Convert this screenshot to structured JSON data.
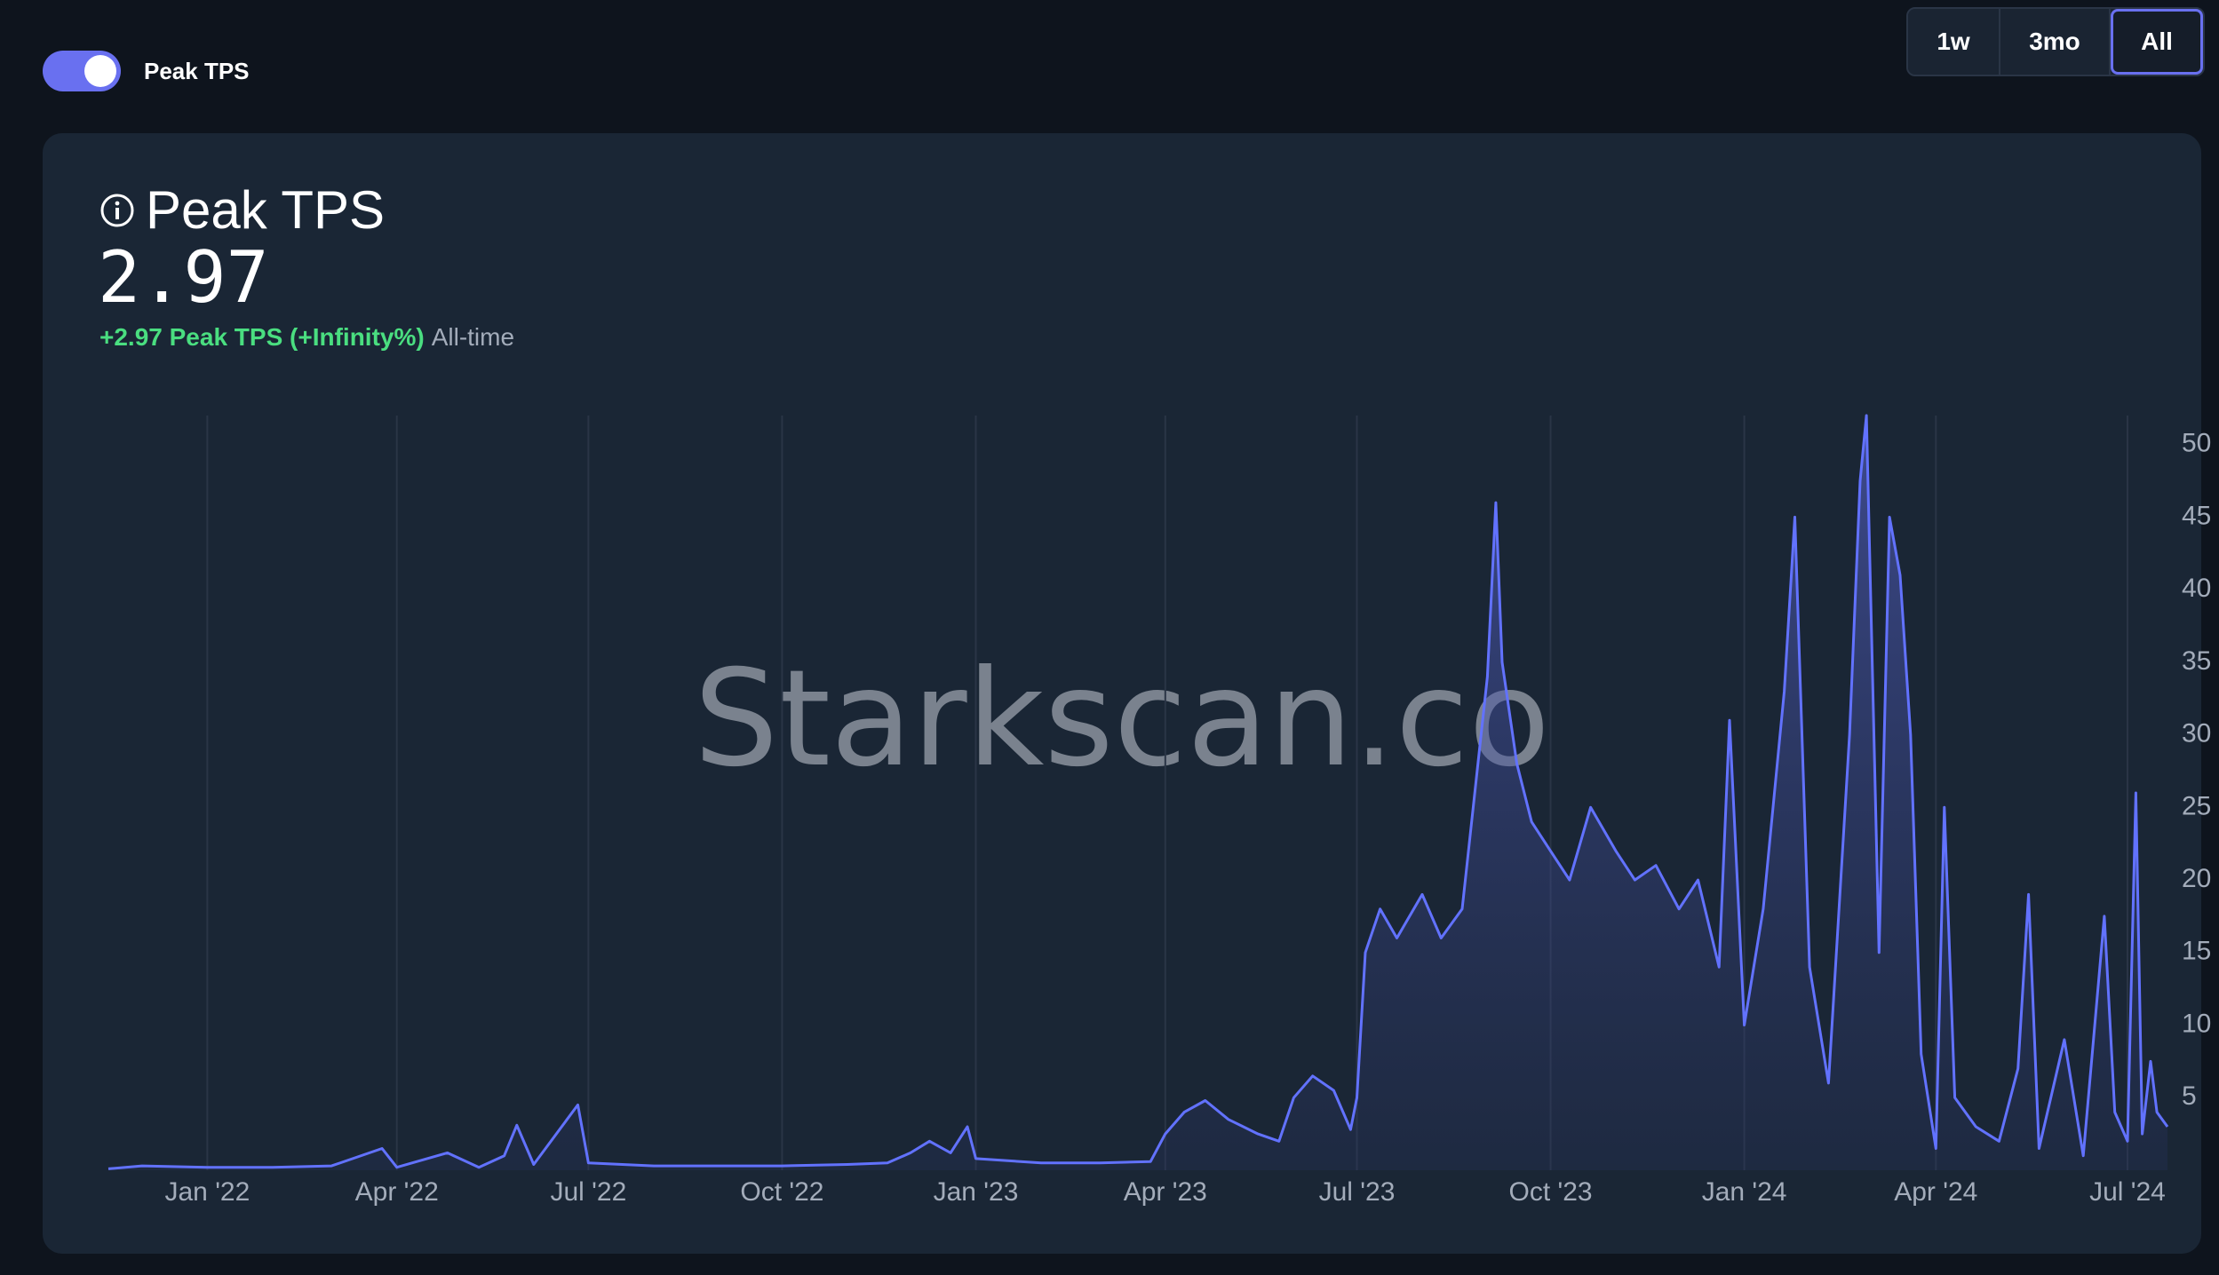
{
  "toggle": {
    "label": "Peak TPS",
    "on": true
  },
  "range_buttons": [
    "1w",
    "3mo",
    "All"
  ],
  "selected_range": "All",
  "card": {
    "title": "Peak TPS",
    "value": "2.97",
    "delta": "+2.97 Peak TPS (+Infinity%)",
    "period": "All-time"
  },
  "watermark": "Starkscan.co",
  "colors": {
    "accent": "#6970f0",
    "line": "#6272ff",
    "positive": "#4ade80",
    "background": "#0e141d",
    "card": "#1a2635"
  },
  "chart_data": {
    "type": "area",
    "x_tick_labels": [
      "Jan '22",
      "Apr '22",
      "Jul '22",
      "Oct '22",
      "Jan '23",
      "Apr '23",
      "Jul '23",
      "Oct '23",
      "Jan '24",
      "Apr '24",
      "Jul '24"
    ],
    "x_tick_dates": [
      "2022-01-01",
      "2022-04-01",
      "2022-07-01",
      "2022-10-01",
      "2023-01-01",
      "2023-04-01",
      "2023-07-01",
      "2023-10-01",
      "2024-01-01",
      "2024-04-01",
      "2024-07-01"
    ],
    "y_ticks": [
      5,
      10,
      15,
      20,
      25,
      30,
      35,
      40,
      45,
      50
    ],
    "ylim": [
      0,
      52
    ],
    "x_range": [
      "2021-11-15",
      "2024-07-20"
    ],
    "y_axis_position": "right",
    "grid": "vertical",
    "series": [
      {
        "points": [
          [
            "2021-11-15",
            0.1
          ],
          [
            "2021-12-01",
            0.3
          ],
          [
            "2022-01-01",
            0.2
          ],
          [
            "2022-02-01",
            0.2
          ],
          [
            "2022-03-01",
            0.3
          ],
          [
            "2022-03-25",
            1.5
          ],
          [
            "2022-04-01",
            0.2
          ],
          [
            "2022-04-25",
            1.2
          ],
          [
            "2022-05-10",
            0.2
          ],
          [
            "2022-05-22",
            1.0
          ],
          [
            "2022-05-28",
            3.1
          ],
          [
            "2022-06-05",
            0.4
          ],
          [
            "2022-06-26",
            4.5
          ],
          [
            "2022-07-01",
            0.5
          ],
          [
            "2022-08-01",
            0.3
          ],
          [
            "2022-09-01",
            0.3
          ],
          [
            "2022-10-01",
            0.3
          ],
          [
            "2022-11-01",
            0.4
          ],
          [
            "2022-11-20",
            0.5
          ],
          [
            "2022-12-01",
            1.2
          ],
          [
            "2022-12-10",
            2.0
          ],
          [
            "2022-12-20",
            1.2
          ],
          [
            "2022-12-28",
            3.0
          ],
          [
            "2023-01-01",
            0.8
          ],
          [
            "2023-02-01",
            0.5
          ],
          [
            "2023-03-01",
            0.5
          ],
          [
            "2023-03-25",
            0.6
          ],
          [
            "2023-04-01",
            2.5
          ],
          [
            "2023-04-10",
            4.0
          ],
          [
            "2023-04-20",
            4.8
          ],
          [
            "2023-05-01",
            3.5
          ],
          [
            "2023-05-15",
            2.5
          ],
          [
            "2023-05-25",
            2.0
          ],
          [
            "2023-06-01",
            5.0
          ],
          [
            "2023-06-10",
            6.5
          ],
          [
            "2023-06-20",
            5.5
          ],
          [
            "2023-06-28",
            2.8
          ],
          [
            "2023-07-01",
            5.0
          ],
          [
            "2023-07-05",
            15.0
          ],
          [
            "2023-07-12",
            18.0
          ],
          [
            "2023-07-20",
            16.0
          ],
          [
            "2023-08-01",
            19.0
          ],
          [
            "2023-08-10",
            16.0
          ],
          [
            "2023-08-20",
            18.0
          ],
          [
            "2023-09-01",
            34.0
          ],
          [
            "2023-09-05",
            46.0
          ],
          [
            "2023-09-08",
            35.0
          ],
          [
            "2023-09-15",
            28.0
          ],
          [
            "2023-09-22",
            24.0
          ],
          [
            "2023-10-01",
            22.0
          ],
          [
            "2023-10-10",
            20.0
          ],
          [
            "2023-10-20",
            25.0
          ],
          [
            "2023-11-01",
            22.0
          ],
          [
            "2023-11-10",
            20.0
          ],
          [
            "2023-11-20",
            21.0
          ],
          [
            "2023-12-01",
            18.0
          ],
          [
            "2023-12-10",
            20.0
          ],
          [
            "2023-12-20",
            14.0
          ],
          [
            "2023-12-25",
            31.0
          ],
          [
            "2024-01-01",
            10.0
          ],
          [
            "2024-01-10",
            18.0
          ],
          [
            "2024-01-20",
            33.0
          ],
          [
            "2024-01-25",
            45.0
          ],
          [
            "2024-02-01",
            14.0
          ],
          [
            "2024-02-10",
            6.0
          ],
          [
            "2024-02-20",
            30.0
          ],
          [
            "2024-02-25",
            47.5
          ],
          [
            "2024-02-28",
            52.0
          ],
          [
            "2024-03-05",
            15.0
          ],
          [
            "2024-03-10",
            45.0
          ],
          [
            "2024-03-15",
            41.0
          ],
          [
            "2024-03-20",
            30.0
          ],
          [
            "2024-03-25",
            8.0
          ],
          [
            "2024-04-01",
            1.5
          ],
          [
            "2024-04-05",
            25.0
          ],
          [
            "2024-04-10",
            5.0
          ],
          [
            "2024-04-20",
            3.0
          ],
          [
            "2024-05-01",
            2.0
          ],
          [
            "2024-05-10",
            7.0
          ],
          [
            "2024-05-15",
            19.0
          ],
          [
            "2024-05-20",
            1.5
          ],
          [
            "2024-06-01",
            9.0
          ],
          [
            "2024-06-10",
            1.0
          ],
          [
            "2024-06-20",
            17.5
          ],
          [
            "2024-06-25",
            4.0
          ],
          [
            "2024-07-01",
            2.0
          ],
          [
            "2024-07-05",
            26.0
          ],
          [
            "2024-07-08",
            2.5
          ],
          [
            "2024-07-12",
            7.5
          ],
          [
            "2024-07-15",
            4.0
          ],
          [
            "2024-07-20",
            3.0
          ]
        ]
      }
    ]
  }
}
